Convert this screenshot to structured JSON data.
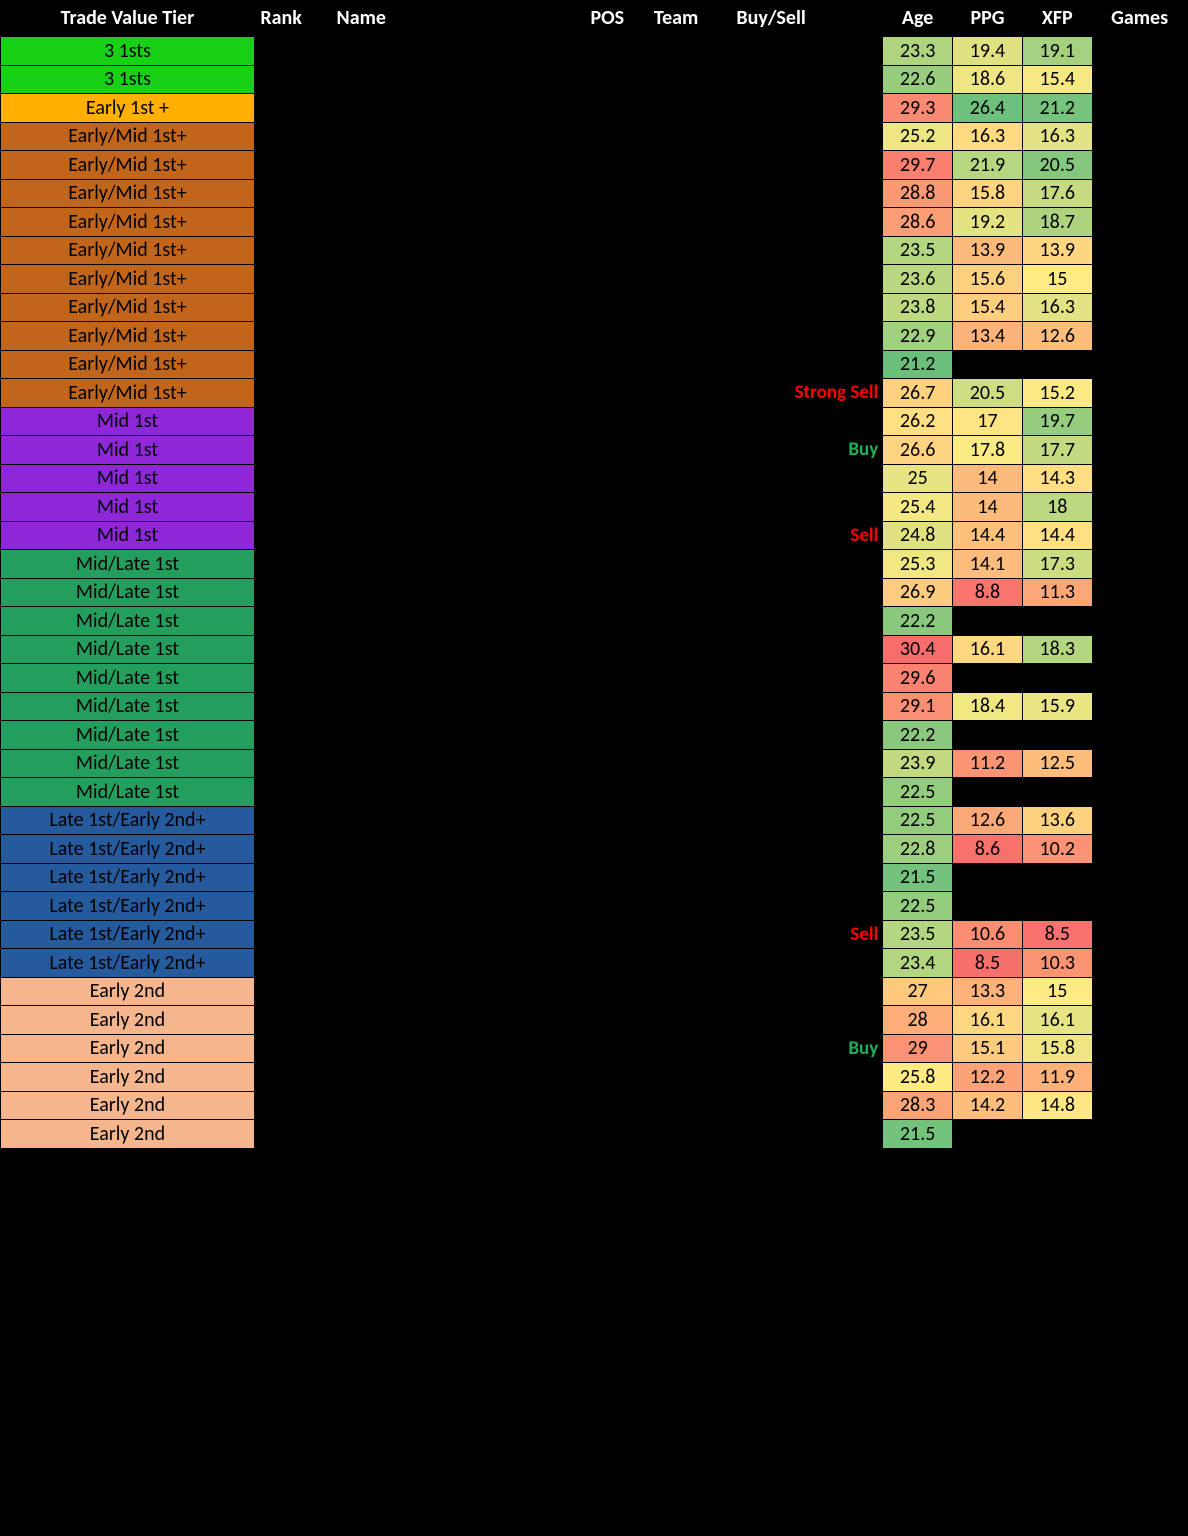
{
  "headers": {
    "tier": "Trade Value Tier",
    "rank": "Rank",
    "name": "Name",
    "pos": "POS",
    "team": "Team",
    "bs": "Buy/Sell",
    "age": "Age",
    "ppg": "PPG",
    "xfp": "XFP",
    "games": "Games"
  },
  "colors": {
    "bg": "#000000",
    "header_text": "#ffffff",
    "buy": "#1fb254",
    "sell": "#ff0000",
    "tier_border": "#000000"
  },
  "tier_colors": {
    "3 1sts": "#17d117",
    "Early 1st +": "#ffb000",
    "Early/Mid 1st+": "#c1651a",
    "Mid 1st": "#8d27d8",
    "Mid/Late 1st": "#239e5c",
    "Late 1st/Early 2nd+": "#255a9c",
    "Early 2nd": "#f5b68e"
  },
  "heat_scale": {
    "age": {
      "min": 21.0,
      "max": 30.5,
      "colors": [
        "#63be7b",
        "#ffeb84",
        "#f8696b"
      ]
    },
    "ppg": {
      "min": 8.0,
      "max": 27.0,
      "colors": [
        "#f8696b",
        "#ffeb84",
        "#63be7b"
      ]
    },
    "xfp": {
      "min": 8.0,
      "max": 22.0,
      "colors": [
        "#f8696b",
        "#ffeb84",
        "#63be7b"
      ]
    }
  },
  "rows": [
    {
      "tier": "3 1sts",
      "bs": "",
      "age": 23.3,
      "ppg": 19.4,
      "xfp": 19.1
    },
    {
      "tier": "3 1sts",
      "bs": "",
      "age": 22.6,
      "ppg": 18.6,
      "xfp": 15.4
    },
    {
      "tier": "Early 1st +",
      "bs": "",
      "age": 29.3,
      "ppg": 26.4,
      "xfp": 21.2
    },
    {
      "tier": "Early/Mid 1st+",
      "bs": "",
      "age": 25.2,
      "ppg": 16.3,
      "xfp": 16.3
    },
    {
      "tier": "Early/Mid 1st+",
      "bs": "",
      "age": 29.7,
      "ppg": 21.9,
      "xfp": 20.5
    },
    {
      "tier": "Early/Mid 1st+",
      "bs": "",
      "age": 28.8,
      "ppg": 15.8,
      "xfp": 17.6
    },
    {
      "tier": "Early/Mid 1st+",
      "bs": "",
      "age": 28.6,
      "ppg": 19.2,
      "xfp": 18.7
    },
    {
      "tier": "Early/Mid 1st+",
      "bs": "",
      "age": 23.5,
      "ppg": 13.9,
      "xfp": 13.9
    },
    {
      "tier": "Early/Mid 1st+",
      "bs": "",
      "age": 23.6,
      "ppg": 15.6,
      "xfp": 15.0
    },
    {
      "tier": "Early/Mid 1st+",
      "bs": "",
      "age": 23.8,
      "ppg": 15.4,
      "xfp": 16.3
    },
    {
      "tier": "Early/Mid 1st+",
      "bs": "",
      "age": 22.9,
      "ppg": 13.4,
      "xfp": 12.6
    },
    {
      "tier": "Early/Mid 1st+",
      "bs": "",
      "age": 21.2,
      "ppg": null,
      "xfp": null
    },
    {
      "tier": "Early/Mid 1st+",
      "bs": "Strong Sell",
      "bs_color": "sell",
      "age": 26.7,
      "ppg": 20.5,
      "xfp": 15.2
    },
    {
      "tier": "Mid 1st",
      "bs": "",
      "age": 26.2,
      "ppg": 17.0,
      "xfp": 19.7
    },
    {
      "tier": "Mid 1st",
      "bs": "Buy",
      "bs_color": "buy",
      "age": 26.6,
      "ppg": 17.8,
      "xfp": 17.7
    },
    {
      "tier": "Mid 1st",
      "bs": "",
      "age": 25,
      "ppg": 14.0,
      "xfp": 14.3
    },
    {
      "tier": "Mid 1st",
      "bs": "",
      "age": 25.4,
      "ppg": 14.0,
      "xfp": 18.0
    },
    {
      "tier": "Mid 1st",
      "bs": "Sell",
      "bs_color": "sell",
      "age": 24.8,
      "ppg": 14.4,
      "xfp": 14.4
    },
    {
      "tier": "Mid/Late 1st",
      "bs": "",
      "age": 25.3,
      "ppg": 14.1,
      "xfp": 17.3
    },
    {
      "tier": "Mid/Late 1st",
      "bs": "",
      "age": 26.9,
      "ppg": 8.8,
      "xfp": 11.3
    },
    {
      "tier": "Mid/Late 1st",
      "bs": "",
      "age": 22.2,
      "ppg": null,
      "xfp": null
    },
    {
      "tier": "Mid/Late 1st",
      "bs": "",
      "age": 30.4,
      "ppg": 16.1,
      "xfp": 18.3
    },
    {
      "tier": "Mid/Late 1st",
      "bs": "",
      "age": 29.6,
      "ppg": null,
      "xfp": null
    },
    {
      "tier": "Mid/Late 1st",
      "bs": "",
      "age": 29.1,
      "ppg": 18.4,
      "xfp": 15.9
    },
    {
      "tier": "Mid/Late 1st",
      "bs": "",
      "age": 22.2,
      "ppg": null,
      "xfp": null
    },
    {
      "tier": "Mid/Late 1st",
      "bs": "",
      "age": 23.9,
      "ppg": 11.2,
      "xfp": 12.5
    },
    {
      "tier": "Mid/Late 1st",
      "bs": "",
      "age": 22.5,
      "ppg": null,
      "xfp": null
    },
    {
      "tier": "Late 1st/Early 2nd+",
      "bs": "",
      "age": 22.5,
      "ppg": 12.6,
      "xfp": 13.6
    },
    {
      "tier": "Late 1st/Early 2nd+",
      "bs": "",
      "age": 22.8,
      "ppg": 8.6,
      "xfp": 10.2
    },
    {
      "tier": "Late 1st/Early 2nd+",
      "bs": "",
      "age": 21.5,
      "ppg": null,
      "xfp": null
    },
    {
      "tier": "Late 1st/Early 2nd+",
      "bs": "",
      "age": 22.5,
      "ppg": null,
      "xfp": null
    },
    {
      "tier": "Late 1st/Early 2nd+",
      "bs": "Sell",
      "bs_color": "sell",
      "age": 23.5,
      "ppg": 10.6,
      "xfp": 8.5
    },
    {
      "tier": "Late 1st/Early 2nd+",
      "bs": "",
      "age": 23.4,
      "ppg": 8.5,
      "xfp": 10.3
    },
    {
      "tier": "Early 2nd",
      "bs": "",
      "age": 27,
      "ppg": 13.3,
      "xfp": 15.0
    },
    {
      "tier": "Early 2nd",
      "bs": "",
      "age": 28,
      "ppg": 16.1,
      "xfp": 16.1
    },
    {
      "tier": "Early 2nd",
      "bs": "Buy",
      "bs_color": "buy",
      "age": 29,
      "ppg": 15.1,
      "xfp": 15.8
    },
    {
      "tier": "Early 2nd",
      "bs": "",
      "age": 25.8,
      "ppg": 12.2,
      "xfp": 11.9
    },
    {
      "tier": "Early 2nd",
      "bs": "",
      "age": 28.3,
      "ppg": 14.2,
      "xfp": 14.8
    },
    {
      "tier": "Early 2nd",
      "bs": "",
      "age": 21.5,
      "ppg": null,
      "xfp": null
    }
  ]
}
